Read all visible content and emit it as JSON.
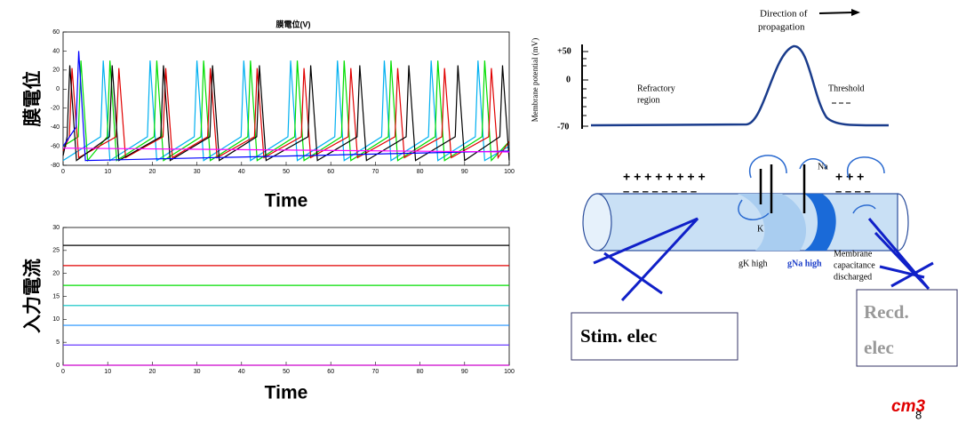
{
  "chart_data": [
    {
      "type": "line",
      "title": "膜電位(V)",
      "ylabel": "膜電位",
      "xlabel": "Time",
      "xlim": [
        0,
        100
      ],
      "ylim": [
        -80,
        60
      ],
      "xticks": [
        0,
        10,
        20,
        30,
        40,
        50,
        60,
        70,
        80,
        90,
        100
      ],
      "yticks": [
        -80,
        -60,
        -40,
        -20,
        0,
        20,
        40,
        60
      ],
      "series": [
        {
          "color": "#00b0f0",
          "x": [
            0,
            8.4,
            9,
            10.5,
            18.9,
            19.5,
            21,
            29.4,
            30,
            31.5,
            39.9,
            40.5,
            42,
            50.4,
            51,
            52.5,
            60.9,
            61.5,
            63,
            71.4,
            72,
            73.5,
            81.9,
            82.5,
            84,
            92.4,
            93,
            94.5,
            100
          ],
          "values": [
            -75,
            -50,
            30,
            -75,
            -50,
            30,
            -75,
            -50,
            30,
            -75,
            -50,
            30,
            -75,
            -50,
            30,
            -75,
            -50,
            30,
            -75,
            -50,
            30,
            -75,
            -50,
            30,
            -75,
            -50,
            30,
            -75,
            -60
          ]
        },
        {
          "color": "#00dd00",
          "x": [
            0,
            3.4,
            4,
            5.5,
            9.9,
            10.5,
            12,
            20.4,
            21,
            22.5,
            30.9,
            31.5,
            33,
            41.4,
            42,
            43.5,
            51.9,
            52.5,
            54,
            62.4,
            63,
            64.5,
            72.9,
            73.5,
            75,
            83.4,
            84,
            85.5,
            93.9,
            94.5,
            96,
            100
          ],
          "values": [
            -60,
            -50,
            30,
            -75,
            -50,
            30,
            -75,
            -50,
            30,
            -75,
            -50,
            30,
            -75,
            -50,
            30,
            -75,
            -50,
            30,
            -75,
            -50,
            30,
            -75,
            -50,
            30,
            -75,
            -50,
            30,
            -75,
            -50,
            30,
            -75,
            -55
          ]
        },
        {
          "color": "#e00000",
          "x": [
            0,
            1.4,
            2,
            3.5,
            11.9,
            12.5,
            14,
            22.4,
            23,
            24.5,
            32.4,
            33,
            34.5,
            42.9,
            43.5,
            45,
            53.4,
            54,
            55.5,
            63.9,
            64.5,
            66,
            74.4,
            75,
            76.5,
            84.9,
            85.5,
            87,
            95.4,
            96,
            97.5,
            100
          ],
          "values": [
            -65,
            -50,
            22,
            -72,
            -50,
            22,
            -72,
            -50,
            22,
            -72,
            -50,
            22,
            -72,
            -50,
            22,
            -72,
            -50,
            22,
            -72,
            -50,
            22,
            -72,
            -50,
            22,
            -72,
            -50,
            22,
            -72,
            -50,
            22,
            -72,
            -55
          ]
        },
        {
          "color": "#000000",
          "x": [
            0,
            0.9,
            1.5,
            3,
            10.4,
            11,
            12.5,
            21.9,
            22.5,
            24,
            32.9,
            33.5,
            35,
            43.4,
            44,
            45.5,
            54.9,
            55.5,
            57,
            65.9,
            66.5,
            68,
            76.9,
            77.5,
            79,
            87.9,
            88.5,
            90,
            97.9,
            98.5,
            100
          ],
          "values": [
            -70,
            -50,
            25,
            -75,
            -50,
            25,
            -75,
            -50,
            25,
            -75,
            -50,
            25,
            -75,
            -50,
            25,
            -75,
            -50,
            25,
            -75,
            -50,
            25,
            -75,
            -50,
            25,
            -75,
            -50,
            25,
            -75,
            -50,
            25,
            -75
          ]
        },
        {
          "color": "#0000ff",
          "x": [
            0,
            2.9,
            3.5,
            5,
            100
          ],
          "values": [
            -60,
            -40,
            40,
            -75,
            -65
          ]
        },
        {
          "color": "#ff00ff",
          "x": [
            0,
            100
          ],
          "values": [
            -62,
            -66
          ]
        }
      ]
    },
    {
      "type": "line",
      "ylabel": "入力電流",
      "xlabel": "Time",
      "xlim": [
        0,
        100
      ],
      "ylim": [
        0,
        30
      ],
      "xticks": [
        0,
        10,
        20,
        30,
        40,
        50,
        60,
        70,
        80,
        90,
        100
      ],
      "yticks": [
        0,
        5,
        10,
        15,
        20,
        25,
        30
      ],
      "series": [
        {
          "color": "#000000",
          "x": [
            0,
            100
          ],
          "values": [
            26.1,
            26.1
          ]
        },
        {
          "color": "#e00000",
          "x": [
            0,
            100
          ],
          "values": [
            21.7,
            21.7
          ]
        },
        {
          "color": "#00dd00",
          "x": [
            0,
            100
          ],
          "values": [
            17.4,
            17.4
          ]
        },
        {
          "color": "#00c0c0",
          "x": [
            0,
            100
          ],
          "values": [
            13,
            13
          ]
        },
        {
          "color": "#1e90ff",
          "x": [
            0,
            100
          ],
          "values": [
            8.7,
            8.7
          ]
        },
        {
          "color": "#6a3cff",
          "x": [
            0,
            100
          ],
          "values": [
            4.4,
            4.4
          ]
        },
        {
          "color": "#cc00cc",
          "x": [
            0,
            100
          ],
          "values": [
            0,
            0
          ]
        }
      ]
    }
  ],
  "diagram": {
    "direction": [
      "Direction of",
      "propagation"
    ],
    "y_axis": "Membrane potential (mV)",
    "ticks": [
      "+50",
      "0",
      "-70"
    ],
    "refractory": [
      "Refractory",
      "region"
    ],
    "threshold": "Threshold",
    "plus_left": "+ + + + + + + +",
    "plus_right": "+ + +",
    "minus_left": "– – – – – – – –",
    "minus_right": "– – – –",
    "na": "Na",
    "k": "K",
    "gk": "gK high",
    "gna": "gNa high",
    "capacitance": [
      "Membrane",
      "capacitance",
      "discharged"
    ],
    "stim": "Stim. elec",
    "recd": [
      "Recd.",
      "elec"
    ]
  },
  "footer": {
    "mark": "cm3",
    "page": "8"
  }
}
